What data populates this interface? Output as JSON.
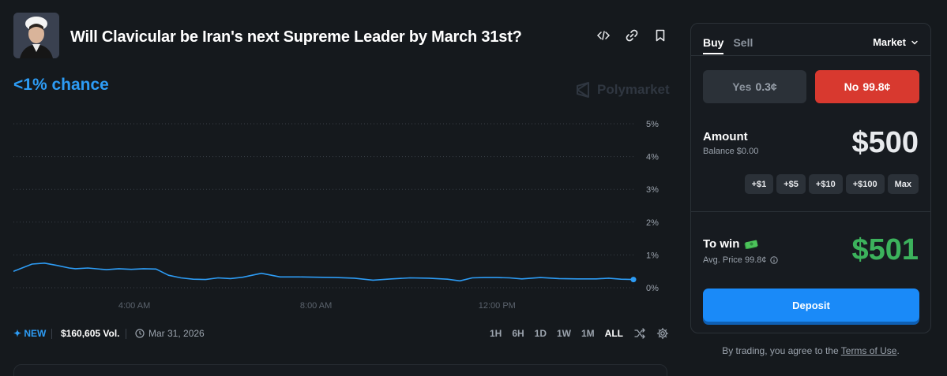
{
  "market": {
    "title": "Will Clavicular be Iran's next Supreme Leader by March 31st?",
    "chance": "<1% chance",
    "brand": "Polymarket"
  },
  "header_icons": [
    "embed-code-icon",
    "link-icon",
    "bookmark-icon"
  ],
  "footer": {
    "badge": "✦ NEW",
    "volume": "$160,605 Vol.",
    "end_date": "Mar 31, 2026",
    "ranges": [
      "1H",
      "6H",
      "1D",
      "1W",
      "1M",
      "ALL"
    ],
    "active_range": "ALL"
  },
  "chart_data": {
    "type": "line",
    "title": "",
    "xlabel": "",
    "ylabel": "",
    "y_ticks": [
      "5%",
      "4%",
      "3%",
      "2%",
      "1%",
      "0%"
    ],
    "x_ticks": [
      "4:00 AM",
      "8:00 AM",
      "12:00 PM"
    ],
    "ylim": [
      0,
      5
    ],
    "grid": true,
    "line_color": "#2d9cf5",
    "series": [
      {
        "x": [
          0,
          3,
          5,
          7,
          9,
          10,
          12,
          15,
          17,
          19,
          21,
          23,
          25,
          27,
          29,
          31,
          33,
          35,
          37,
          40,
          43,
          46,
          49,
          52,
          55,
          58,
          61,
          64,
          67,
          70,
          72,
          74,
          76,
          78,
          80,
          82,
          85,
          88,
          91,
          94,
          96,
          98,
          100
        ],
        "y": [
          0.5,
          0.72,
          0.75,
          0.68,
          0.6,
          0.58,
          0.6,
          0.55,
          0.58,
          0.56,
          0.58,
          0.57,
          0.38,
          0.3,
          0.26,
          0.25,
          0.3,
          0.28,
          0.32,
          0.44,
          0.33,
          0.33,
          0.32,
          0.31,
          0.29,
          0.23,
          0.27,
          0.3,
          0.29,
          0.26,
          0.21,
          0.3,
          0.31,
          0.31,
          0.3,
          0.27,
          0.31,
          0.28,
          0.27,
          0.27,
          0.29,
          0.26,
          0.25
        ]
      }
    ]
  },
  "trade": {
    "tab_buy": "Buy",
    "tab_sell": "Sell",
    "order_type": "Market",
    "yes_label": "Yes",
    "yes_price": "0.3¢",
    "no_label": "No",
    "no_price": "99.8¢",
    "amount_label": "Amount",
    "balance": "Balance $0.00",
    "amount_value": "$500",
    "quick_amounts": [
      "+$1",
      "+$5",
      "+$10",
      "+$100",
      "Max"
    ],
    "to_win_label": "To win",
    "avg_price": "Avg. Price 99.8¢",
    "to_win_value": "$501",
    "deposit_label": "Deposit",
    "accent_no": "#d8392f",
    "accent_win": "#3cb25c",
    "accent_deposit": "#1a8af8"
  },
  "terms": {
    "prefix": "By trading, you agree to the",
    "link": "Terms of Use",
    "suffix": "."
  }
}
